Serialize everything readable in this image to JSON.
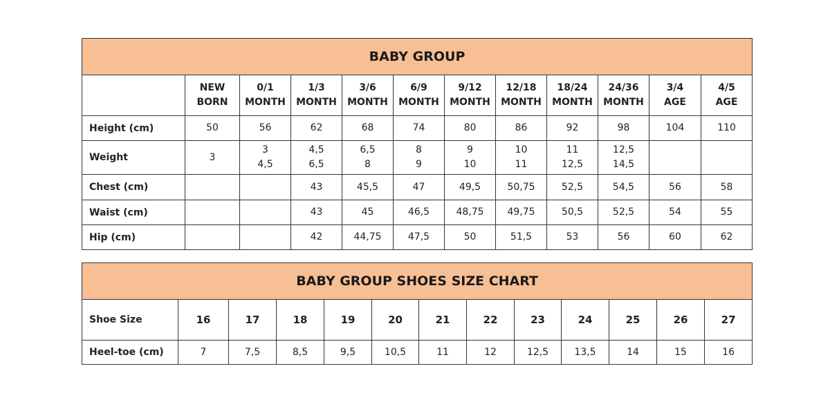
{
  "size_chart": {
    "title": "BABY GROUP",
    "columns": [
      [
        "NEW",
        "BORN"
      ],
      [
        "0/1",
        "MONTH"
      ],
      [
        "1/3",
        "MONTH"
      ],
      [
        "3/6",
        "MONTH"
      ],
      [
        "6/9",
        "MONTH"
      ],
      [
        "9/12",
        "MONTH"
      ],
      [
        "12/18",
        "MONTH"
      ],
      [
        "18/24",
        "MONTH"
      ],
      [
        "24/36",
        "MONTH"
      ],
      [
        "3/4",
        "AGE"
      ],
      [
        "4/5",
        "AGE"
      ]
    ],
    "rows": [
      {
        "label": "Height (cm)",
        "values": [
          [
            "50"
          ],
          [
            "56"
          ],
          [
            "62"
          ],
          [
            "68"
          ],
          [
            "74"
          ],
          [
            "80"
          ],
          [
            "86"
          ],
          [
            "92"
          ],
          [
            "98"
          ],
          [
            "104"
          ],
          [
            "110"
          ]
        ]
      },
      {
        "label": "Weight",
        "values": [
          [
            "3"
          ],
          [
            "3",
            "4,5"
          ],
          [
            "4,5",
            "6,5"
          ],
          [
            "6,5",
            "8"
          ],
          [
            "8",
            "9"
          ],
          [
            "9",
            "10"
          ],
          [
            "10",
            "11"
          ],
          [
            "11",
            "12,5"
          ],
          [
            "12,5",
            "14,5"
          ],
          [],
          []
        ]
      },
      {
        "label": "Chest (cm)",
        "values": [
          [],
          [],
          [
            "43"
          ],
          [
            "45,5"
          ],
          [
            "47"
          ],
          [
            "49,5"
          ],
          [
            "50,75"
          ],
          [
            "52,5"
          ],
          [
            "54,5"
          ],
          [
            "56"
          ],
          [
            "58"
          ]
        ]
      },
      {
        "label": "Waist (cm)",
        "values": [
          [],
          [],
          [
            "43"
          ],
          [
            "45"
          ],
          [
            "46,5"
          ],
          [
            "48,75"
          ],
          [
            "49,75"
          ],
          [
            "50,5"
          ],
          [
            "52,5"
          ],
          [
            "54"
          ],
          [
            "55"
          ]
        ]
      },
      {
        "label": "Hip (cm)",
        "values": [
          [],
          [],
          [
            "42"
          ],
          [
            "44,75"
          ],
          [
            "47,5"
          ],
          [
            "50"
          ],
          [
            "51,5"
          ],
          [
            "53"
          ],
          [
            "56"
          ],
          [
            "60"
          ],
          [
            "62"
          ]
        ]
      }
    ]
  },
  "shoes_chart": {
    "title": "BABY GROUP SHOES SIZE CHART",
    "shoe_size_label": "Shoe Size",
    "shoe_sizes": [
      "16",
      "17",
      "18",
      "19",
      "20",
      "21",
      "22",
      "23",
      "24",
      "25",
      "26",
      "27"
    ],
    "heel_toe_label": "Heel-toe (cm)",
    "heel_toe": [
      "7",
      "7,5",
      "8,5",
      "9,5",
      "10,5",
      "11",
      "12",
      "12,5",
      "13,5",
      "14",
      "15",
      "16"
    ]
  },
  "colors": {
    "header_fill": "#f8bf95",
    "border": "#333333"
  }
}
